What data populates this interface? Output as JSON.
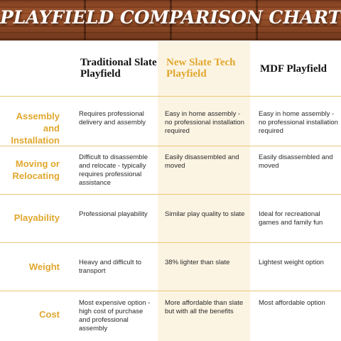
{
  "title": "PLAYFIELD COMPARISON CHART",
  "columns": [
    {
      "label": "Traditional Slate Playfield"
    },
    {
      "label": "New Slate Tech Playfield"
    },
    {
      "label": "MDF Playfield"
    }
  ],
  "rows": [
    {
      "label": "Assembly and Installation",
      "cells": [
        "Requires professional delivery and assembly",
        "Easy in home assembly - no professional installation required",
        "Easy in home assembly - no professional installation required"
      ]
    },
    {
      "label": "Moving or Relocating",
      "cells": [
        "Difficult to disassemble and relocate - typically requires professional assistance",
        "Easily disassembled and moved",
        "Easily disassembled and moved"
      ]
    },
    {
      "label": "Playability",
      "cells": [
        "Professional playability",
        "Similar play quality to slate",
        "Ideal for recreational games and family fun"
      ]
    },
    {
      "label": "Weight",
      "cells": [
        "Heavy and difficult to transport",
        "38% lighter than slate",
        "Lightest weight option"
      ]
    },
    {
      "label": "Cost",
      "cells": [
        "Most expensive option - high cost of purchase and professional assembly",
        "More affordable than slate but with all the benefits",
        "Most affordable option"
      ]
    }
  ],
  "colors": {
    "accent": "#e0a72e",
    "highlight_column": "#fcf4e3",
    "divider": "#e8c778",
    "banner_wood": "#8a4520"
  }
}
